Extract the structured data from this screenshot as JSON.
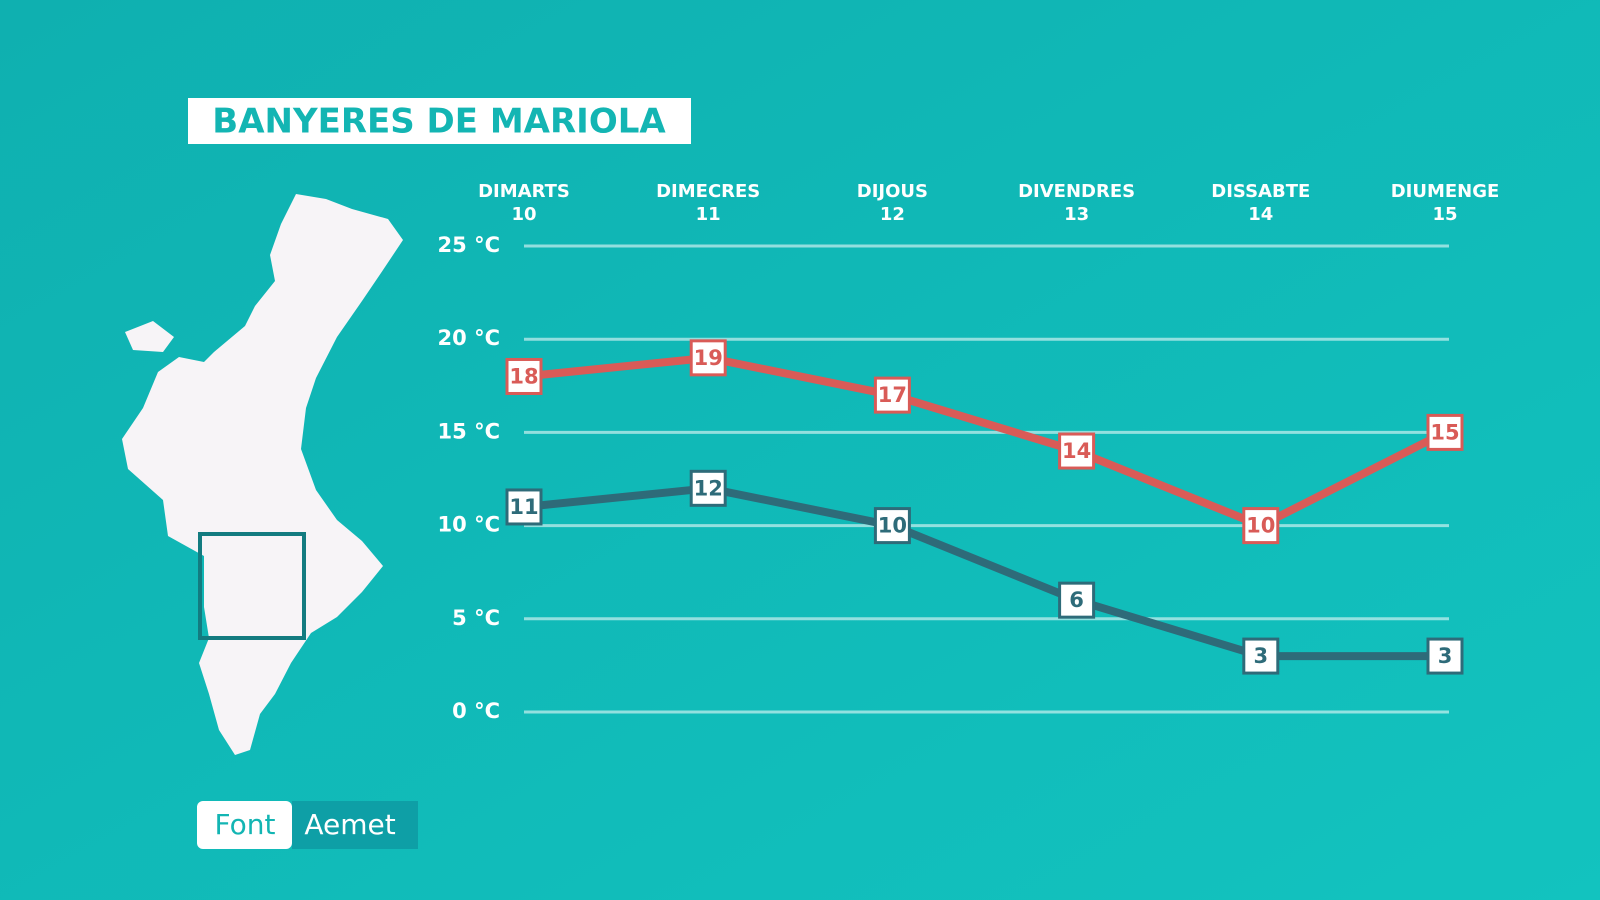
{
  "title": "BANYERES DE MARIOLA",
  "source": {
    "label": "Font",
    "value": "Aemet"
  },
  "chart_data": {
    "type": "line",
    "categories": [
      "DIMARTS",
      "DIMECRES",
      "DIJOUS",
      "DIVENDRES",
      "DISSABTE",
      "DIUMENGE"
    ],
    "dates": [
      10,
      11,
      12,
      13,
      14,
      15
    ],
    "series": [
      {
        "color": "#d95b57",
        "values": [
          18,
          19,
          17,
          14,
          10,
          15
        ]
      },
      {
        "color": "#2e6b79",
        "values": [
          11,
          12,
          10,
          6,
          3,
          3
        ]
      }
    ],
    "ylim": [
      0,
      25
    ],
    "yticks": [
      {
        "value": 0,
        "label": "0 °C"
      },
      {
        "value": 5,
        "label": "5 °C"
      },
      {
        "value": 10,
        "label": "10 °C"
      },
      {
        "value": 15,
        "label": "15 °C"
      },
      {
        "value": 20,
        "label": "20 °C"
      },
      {
        "value": 25,
        "label": "25 °C"
      }
    ],
    "grid": true
  }
}
